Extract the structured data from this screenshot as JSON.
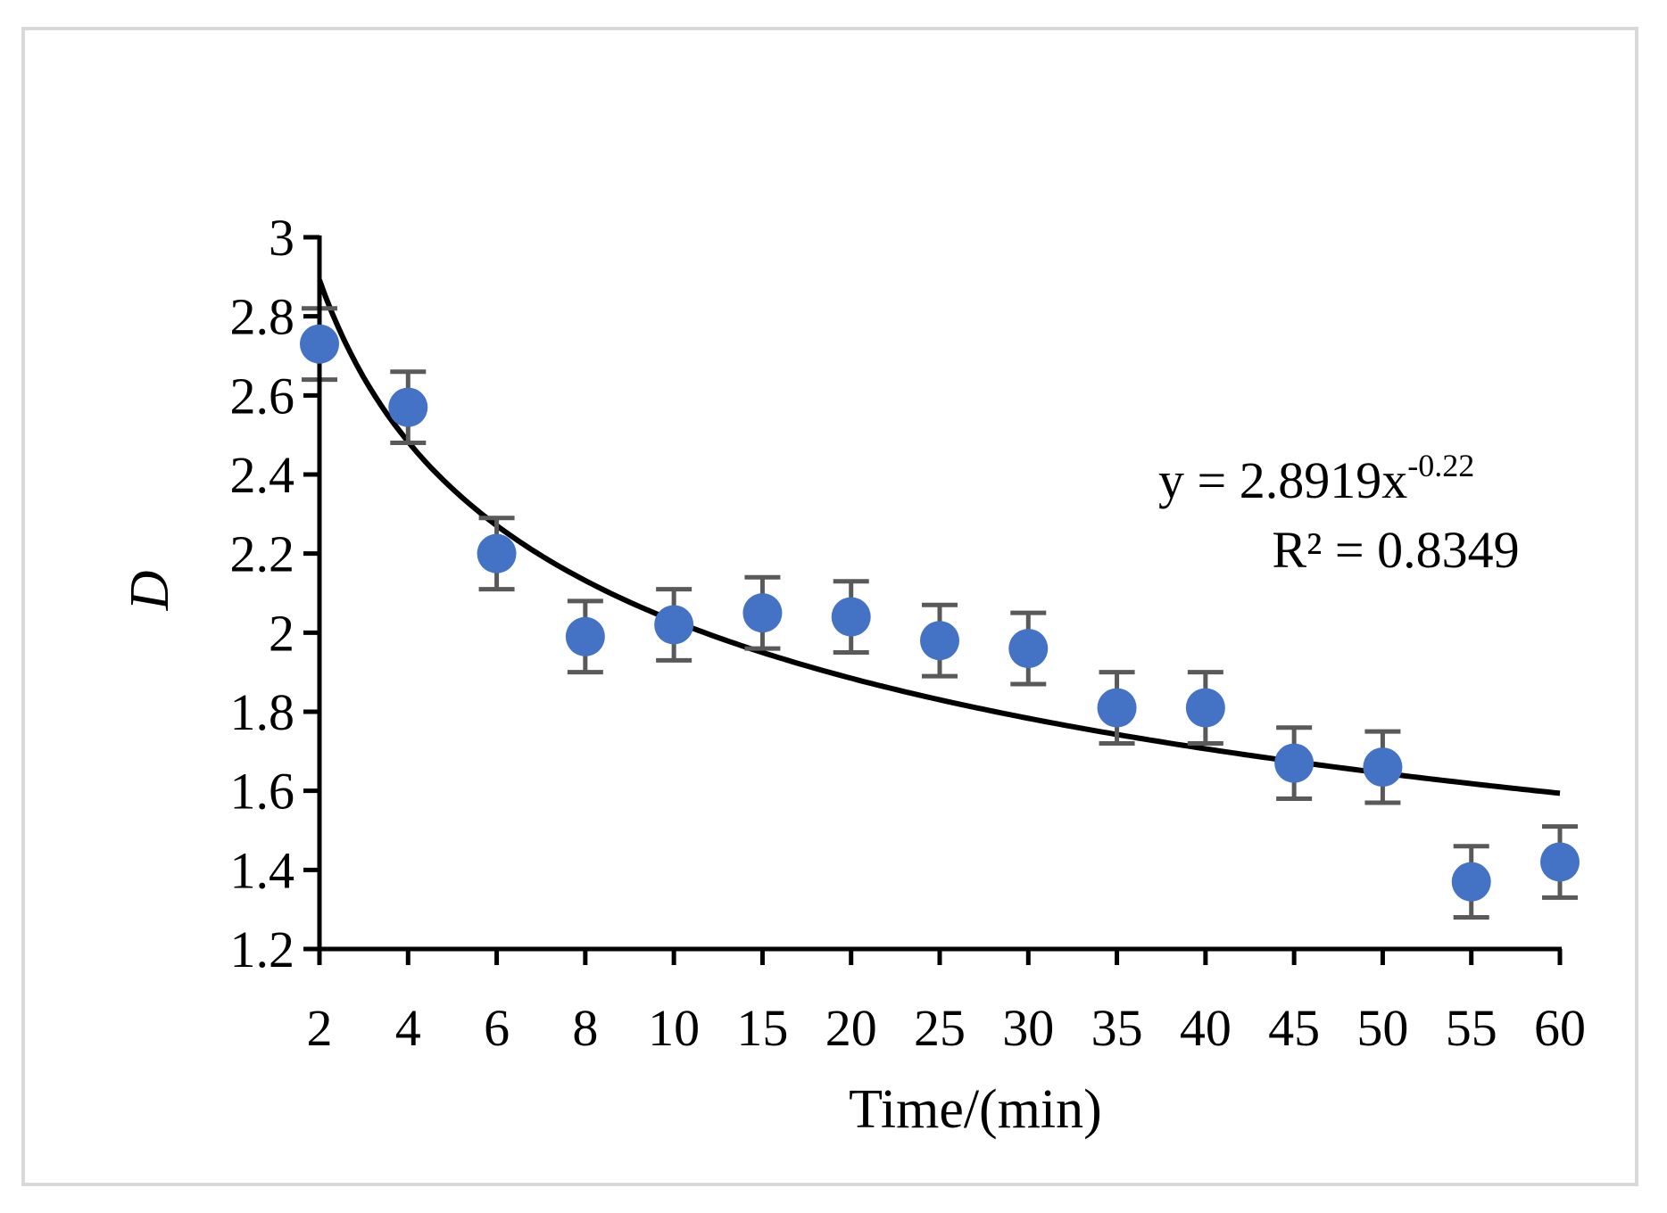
{
  "chart_data": {
    "type": "scatter",
    "title": "",
    "xlabel": "Time/(min)",
    "ylabel": "D",
    "categories": [
      "2",
      "4",
      "6",
      "8",
      "10",
      "15",
      "20",
      "25",
      "30",
      "35",
      "40",
      "45",
      "50",
      "55",
      "60"
    ],
    "series": [
      {
        "name": "D",
        "color": "#4472c4",
        "values": [
          2.73,
          2.57,
          2.2,
          1.99,
          2.02,
          2.05,
          2.04,
          1.98,
          1.96,
          1.81,
          1.81,
          1.67,
          1.66,
          1.37,
          1.42
        ],
        "error": [
          0.09,
          0.09,
          0.09,
          0.09,
          0.09,
          0.09,
          0.09,
          0.09,
          0.09,
          0.09,
          0.09,
          0.09,
          0.09,
          0.09,
          0.09
        ]
      }
    ],
    "trendline": {
      "type": "power",
      "coefficient": 2.8919,
      "exponent": -0.22,
      "color": "#000000",
      "equation_main": "y = 2.8919x",
      "equation_exponent": "-0.22",
      "r_squared_label": "R² = 0.8349"
    },
    "ylim": [
      1.2,
      3.0
    ],
    "yticks": [
      1.2,
      1.4,
      1.6,
      1.8,
      2.0,
      2.2,
      2.4,
      2.6,
      2.8,
      3.0
    ],
    "ytick_labels": [
      "1.2",
      "1.4",
      "1.6",
      "1.8",
      "2",
      "2.2",
      "2.4",
      "2.6",
      "2.8",
      "3"
    ],
    "grid": false,
    "legend": "none",
    "error_bar_color": "#595959"
  }
}
